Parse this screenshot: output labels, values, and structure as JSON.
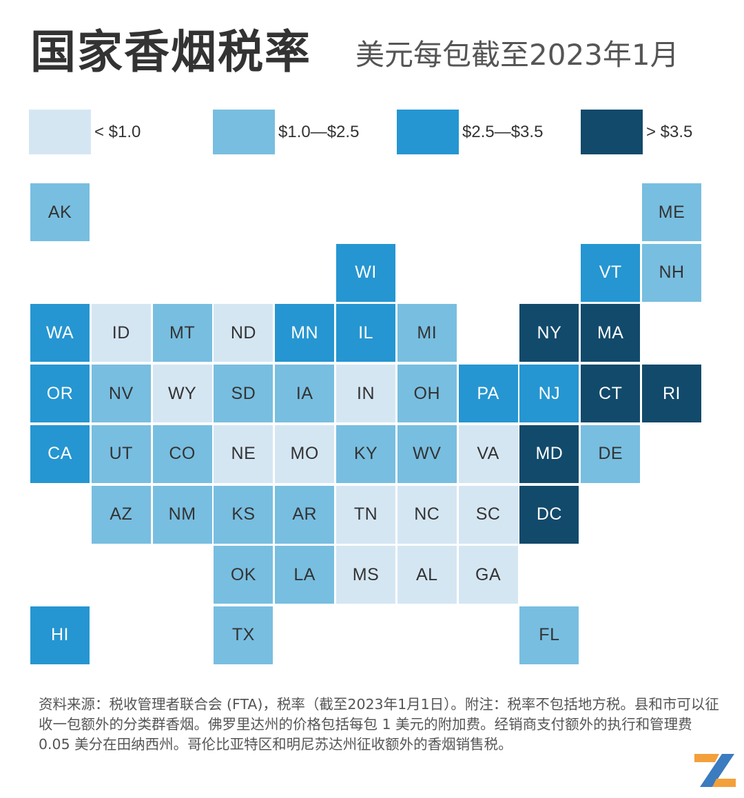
{
  "header": {
    "title": "国家香烟税率",
    "subtitle": "美元每包截至2023年1月"
  },
  "legend": [
    {
      "label": "< $1.0",
      "color": "#d5e6f3"
    },
    {
      "label": "$1.0—$2.5",
      "color": "#78bee0"
    },
    {
      "label": "$2.5—$3.5",
      "color": "#2596d1"
    },
    {
      "label": "> $3.5",
      "color": "#124a6b"
    }
  ],
  "colors": {
    "tier_0": "#d5e6f3",
    "tier_1": "#78bee0",
    "tier_2": "#2596d1",
    "tier_3": "#124a6b",
    "text_dark": "#333333",
    "text_light": "#ffffff"
  },
  "states": [
    {
      "code": "AK",
      "tier": 1
    },
    {
      "code": "ME",
      "tier": 1
    },
    {
      "code": "WI",
      "tier": 2
    },
    {
      "code": "VT",
      "tier": 2
    },
    {
      "code": "NH",
      "tier": 1
    },
    {
      "code": "WA",
      "tier": 2
    },
    {
      "code": "ID",
      "tier": 0
    },
    {
      "code": "MT",
      "tier": 1
    },
    {
      "code": "ND",
      "tier": 0
    },
    {
      "code": "MN",
      "tier": 2
    },
    {
      "code": "IL",
      "tier": 2
    },
    {
      "code": "MI",
      "tier": 1
    },
    {
      "code": "NY",
      "tier": 3
    },
    {
      "code": "MA",
      "tier": 3
    },
    {
      "code": "OR",
      "tier": 2
    },
    {
      "code": "NV",
      "tier": 1
    },
    {
      "code": "WY",
      "tier": 0
    },
    {
      "code": "SD",
      "tier": 1
    },
    {
      "code": "IA",
      "tier": 1
    },
    {
      "code": "IN",
      "tier": 0
    },
    {
      "code": "OH",
      "tier": 1
    },
    {
      "code": "PA",
      "tier": 2
    },
    {
      "code": "NJ",
      "tier": 2
    },
    {
      "code": "CT",
      "tier": 3
    },
    {
      "code": "RI",
      "tier": 3
    },
    {
      "code": "CA",
      "tier": 2
    },
    {
      "code": "UT",
      "tier": 1
    },
    {
      "code": "CO",
      "tier": 1
    },
    {
      "code": "NE",
      "tier": 0
    },
    {
      "code": "MO",
      "tier": 0
    },
    {
      "code": "KY",
      "tier": 1
    },
    {
      "code": "WV",
      "tier": 1
    },
    {
      "code": "VA",
      "tier": 0
    },
    {
      "code": "MD",
      "tier": 3
    },
    {
      "code": "DE",
      "tier": 1
    },
    {
      "code": "AZ",
      "tier": 1
    },
    {
      "code": "NM",
      "tier": 1
    },
    {
      "code": "KS",
      "tier": 1
    },
    {
      "code": "AR",
      "tier": 1
    },
    {
      "code": "TN",
      "tier": 0
    },
    {
      "code": "NC",
      "tier": 0
    },
    {
      "code": "SC",
      "tier": 0
    },
    {
      "code": "DC",
      "tier": 3
    },
    {
      "code": "OK",
      "tier": 1
    },
    {
      "code": "LA",
      "tier": 1
    },
    {
      "code": "MS",
      "tier": 0
    },
    {
      "code": "AL",
      "tier": 0
    },
    {
      "code": "GA",
      "tier": 0
    },
    {
      "code": "HI",
      "tier": 2
    },
    {
      "code": "TX",
      "tier": 1
    },
    {
      "code": "FL",
      "tier": 1
    }
  ],
  "footnote": "资料来源：税收管理者联合会 (FTA)，税率（截至2023年1月1日）。附注：税率不包括地方税。县和市可以征收一包额外的分类群香烟。佛罗里达州的价格包括每包 1 美元的附加费。经销商支付额外的执行和管理费 0.05 美分在田纳西州。哥伦比亚特区和明尼苏达州征收额外的香烟销售税。",
  "logo": {
    "icon": "z-logo-icon",
    "colors": [
      "#f3a03b",
      "#3b7bbf"
    ]
  }
}
